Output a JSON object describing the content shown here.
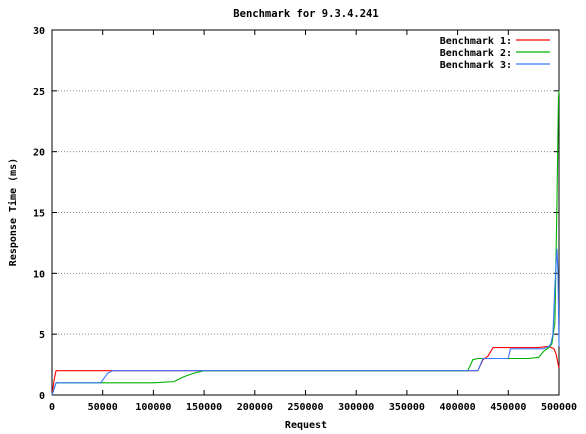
{
  "chart_data": {
    "type": "line",
    "title": "Benchmark for 9.3.4.241",
    "xlabel": "Request",
    "ylabel": "Response Time (ms)",
    "xlim": [
      0,
      500000
    ],
    "ylim": [
      0,
      30
    ],
    "grid": "horizontal dotted",
    "legend_position": "top-right",
    "xticks": [
      0,
      50000,
      100000,
      150000,
      200000,
      250000,
      300000,
      350000,
      400000,
      450000,
      500000
    ],
    "yticks": [
      0,
      5,
      10,
      15,
      20,
      25,
      30
    ],
    "series": [
      {
        "name": "Benchmark 1:",
        "color": "#ff0000",
        "points": [
          [
            0,
            0
          ],
          [
            2000,
            1.2
          ],
          [
            4000,
            2
          ],
          [
            50000,
            2
          ],
          [
            150000,
            2
          ],
          [
            300000,
            2
          ],
          [
            410000,
            2
          ],
          [
            420000,
            2
          ],
          [
            425000,
            2.9
          ],
          [
            430000,
            3.2
          ],
          [
            435000,
            3.9
          ],
          [
            450000,
            3.9
          ],
          [
            480000,
            3.9
          ],
          [
            490000,
            4
          ],
          [
            495000,
            3.8
          ],
          [
            497000,
            3.4
          ],
          [
            500000,
            2.2
          ]
        ]
      },
      {
        "name": "Benchmark 2:",
        "color": "#00b000",
        "points": [
          [
            0,
            0
          ],
          [
            2000,
            0.5
          ],
          [
            4000,
            1
          ],
          [
            50000,
            1
          ],
          [
            100000,
            1
          ],
          [
            120000,
            1.1
          ],
          [
            130000,
            1.5
          ],
          [
            140000,
            1.8
          ],
          [
            150000,
            2
          ],
          [
            200000,
            2
          ],
          [
            300000,
            2
          ],
          [
            410000,
            2
          ],
          [
            415000,
            2.9
          ],
          [
            420000,
            3
          ],
          [
            470000,
            3
          ],
          [
            480000,
            3.1
          ],
          [
            485000,
            3.6
          ],
          [
            490000,
            3.9
          ],
          [
            493000,
            4.2
          ],
          [
            496000,
            6
          ],
          [
            498000,
            16
          ],
          [
            499500,
            24.5
          ],
          [
            500000,
            25
          ]
        ]
      },
      {
        "name": "Benchmark 3:",
        "color": "#3a78ff",
        "points": [
          [
            0,
            0
          ],
          [
            2000,
            0.5
          ],
          [
            4000,
            1
          ],
          [
            45000,
            1
          ],
          [
            48000,
            1
          ],
          [
            55000,
            1.8
          ],
          [
            60000,
            2
          ],
          [
            150000,
            2
          ],
          [
            300000,
            2
          ],
          [
            410000,
            2
          ],
          [
            420000,
            2
          ],
          [
            425000,
            3
          ],
          [
            440000,
            3
          ],
          [
            450000,
            3
          ],
          [
            452000,
            3.8
          ],
          [
            470000,
            3.8
          ],
          [
            485000,
            3.8
          ],
          [
            490000,
            4
          ],
          [
            492000,
            4.2
          ],
          [
            494000,
            5
          ],
          [
            496000,
            9
          ],
          [
            498000,
            12
          ],
          [
            499000,
            10
          ],
          [
            500000,
            4
          ]
        ]
      }
    ]
  }
}
